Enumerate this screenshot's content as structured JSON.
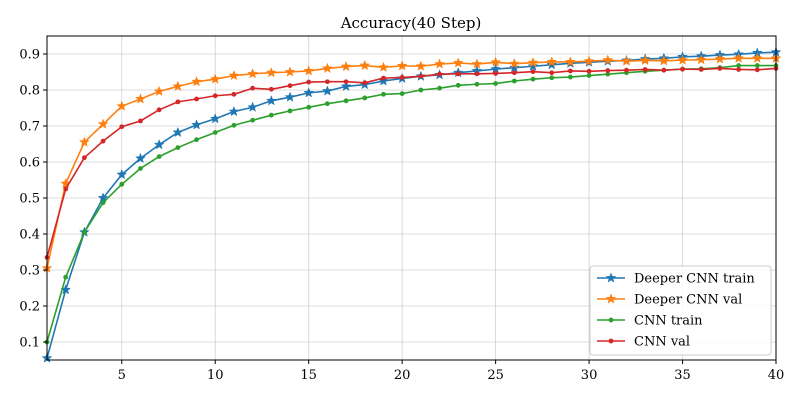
{
  "chart_data": {
    "type": "line",
    "title": "Accuracy(40 Step)",
    "xlabel": "",
    "ylabel": "",
    "xlim": [
      1,
      40
    ],
    "ylim": [
      0.05,
      0.95
    ],
    "xticks": [
      5,
      10,
      15,
      20,
      25,
      30,
      35,
      40
    ],
    "yticks": [
      0.1,
      0.2,
      0.3,
      0.4,
      0.5,
      0.6,
      0.7,
      0.8,
      0.9
    ],
    "grid": true,
    "legend_position": "lower-right",
    "x": [
      1,
      2,
      3,
      4,
      5,
      6,
      7,
      8,
      9,
      10,
      11,
      12,
      13,
      14,
      15,
      16,
      17,
      18,
      19,
      20,
      21,
      22,
      23,
      24,
      25,
      26,
      27,
      28,
      29,
      30,
      31,
      32,
      33,
      34,
      35,
      36,
      37,
      38,
      39,
      40
    ],
    "series": [
      {
        "name": "Deeper CNN train",
        "color": "#1f77b4",
        "marker": "star",
        "values": [
          0.055,
          0.245,
          0.405,
          0.5,
          0.565,
          0.61,
          0.648,
          0.682,
          0.703,
          0.72,
          0.74,
          0.752,
          0.77,
          0.78,
          0.792,
          0.797,
          0.81,
          0.815,
          0.825,
          0.832,
          0.838,
          0.842,
          0.848,
          0.853,
          0.858,
          0.862,
          0.866,
          0.87,
          0.874,
          0.877,
          0.88,
          0.882,
          0.886,
          0.888,
          0.892,
          0.894,
          0.897,
          0.899,
          0.903,
          0.905
        ]
      },
      {
        "name": "Deeper CNN val",
        "color": "#ff7f0e",
        "marker": "star",
        "values": [
          0.305,
          0.54,
          0.655,
          0.705,
          0.755,
          0.775,
          0.796,
          0.81,
          0.823,
          0.83,
          0.84,
          0.845,
          0.848,
          0.85,
          0.853,
          0.86,
          0.865,
          0.868,
          0.863,
          0.867,
          0.866,
          0.872,
          0.875,
          0.872,
          0.877,
          0.873,
          0.876,
          0.878,
          0.878,
          0.88,
          0.883,
          0.88,
          0.882,
          0.881,
          0.883,
          0.884,
          0.886,
          0.888,
          0.888,
          0.888
        ]
      },
      {
        "name": "CNN train",
        "color": "#2ca02c",
        "marker": "dot",
        "values": [
          0.1,
          0.28,
          0.405,
          0.487,
          0.538,
          0.582,
          0.615,
          0.64,
          0.662,
          0.682,
          0.702,
          0.716,
          0.73,
          0.742,
          0.752,
          0.762,
          0.77,
          0.778,
          0.788,
          0.79,
          0.8,
          0.805,
          0.813,
          0.816,
          0.818,
          0.825,
          0.83,
          0.834,
          0.836,
          0.84,
          0.844,
          0.848,
          0.852,
          0.855,
          0.858,
          0.859,
          0.862,
          0.868,
          0.868,
          0.868
        ]
      },
      {
        "name": "CNN val",
        "color": "#d62728",
        "marker": "dot",
        "values": [
          0.335,
          0.525,
          0.612,
          0.658,
          0.698,
          0.714,
          0.745,
          0.767,
          0.775,
          0.784,
          0.788,
          0.805,
          0.802,
          0.812,
          0.822,
          0.823,
          0.823,
          0.82,
          0.833,
          0.835,
          0.838,
          0.844,
          0.845,
          0.845,
          0.846,
          0.848,
          0.851,
          0.848,
          0.853,
          0.852,
          0.854,
          0.855,
          0.857,
          0.855,
          0.858,
          0.857,
          0.86,
          0.857,
          0.856,
          0.86
        ]
      }
    ]
  }
}
